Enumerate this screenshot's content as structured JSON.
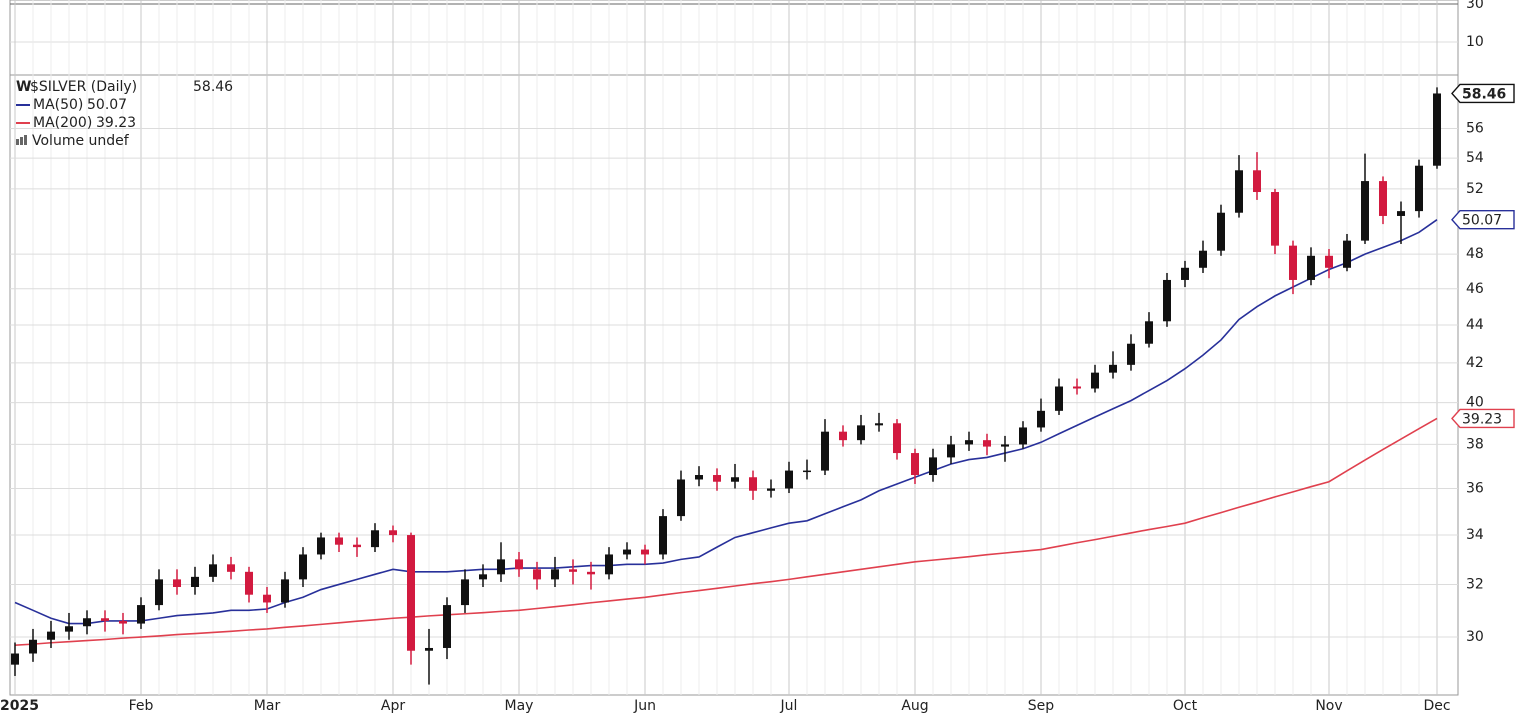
{
  "chart_data": {
    "type": "candlestick",
    "title": "$SILVER (Daily)",
    "log_scale": true,
    "grid": true,
    "up_color": "#111111",
    "down_color": "#d21a3f",
    "categories": [
      "2025",
      null,
      null,
      null,
      null,
      null,
      null,
      "Feb",
      null,
      null,
      null,
      null,
      null,
      null,
      "Mar",
      null,
      null,
      null,
      null,
      null,
      null,
      "Apr",
      null,
      null,
      null,
      null,
      null,
      null,
      "May",
      null,
      null,
      null,
      null,
      null,
      null,
      "Jun",
      null,
      null,
      null,
      null,
      null,
      null,
      null,
      "Jul",
      null,
      null,
      null,
      null,
      null,
      null,
      "Aug",
      null,
      null,
      null,
      null,
      null,
      null,
      "Sep",
      null,
      null,
      null,
      null,
      null,
      null,
      null,
      "Oct",
      null,
      null,
      null,
      null,
      null,
      null,
      null,
      "Nov",
      null,
      null,
      null,
      null,
      null,
      "Dec"
    ],
    "open": [
      29.0,
      29.4,
      29.9,
      30.2,
      30.4,
      30.7,
      30.6,
      30.5,
      31.2,
      32.2,
      31.9,
      32.3,
      32.8,
      32.5,
      31.6,
      31.3,
      32.2,
      33.2,
      33.9,
      33.6,
      33.5,
      34.2,
      34.0,
      29.5,
      29.6,
      31.2,
      32.2,
      32.4,
      33.0,
      32.6,
      32.2,
      32.6,
      32.5,
      32.4,
      33.2,
      33.4,
      33.2,
      34.8,
      36.4,
      36.6,
      36.3,
      36.5,
      35.9,
      36.0,
      36.8,
      36.8,
      38.6,
      38.2,
      38.9,
      39.0,
      37.6,
      36.6,
      37.4,
      38.0,
      38.2,
      37.9,
      38.0,
      38.8,
      39.6,
      40.8,
      40.7,
      41.5,
      41.9,
      43.0,
      44.2,
      46.5,
      47.2,
      48.2,
      50.5,
      53.2,
      51.8,
      48.5,
      46.5,
      47.9,
      47.2,
      48.8,
      52.5,
      50.3,
      50.6,
      53.5
    ],
    "high": [
      29.8,
      30.3,
      30.6,
      30.9,
      31.0,
      31.0,
      30.9,
      31.5,
      32.6,
      32.6,
      32.7,
      33.2,
      33.1,
      32.7,
      31.9,
      32.5,
      33.5,
      34.1,
      34.1,
      33.9,
      34.5,
      34.4,
      34.1,
      30.3,
      31.5,
      32.6,
      32.8,
      33.7,
      33.3,
      32.9,
      33.1,
      33.0,
      32.9,
      33.5,
      33.7,
      33.6,
      35.1,
      36.8,
      37.0,
      36.9,
      37.1,
      36.8,
      36.4,
      37.2,
      37.3,
      39.2,
      38.9,
      39.4,
      39.5,
      39.2,
      37.8,
      37.8,
      38.4,
      38.6,
      38.5,
      38.4,
      39.1,
      40.2,
      41.2,
      41.2,
      41.9,
      42.6,
      43.5,
      44.7,
      46.9,
      47.6,
      48.8,
      51.0,
      54.2,
      54.4,
      52.0,
      48.8,
      48.4,
      48.3,
      49.2,
      54.3,
      52.8,
      51.2,
      53.9,
      58.9
    ],
    "low": [
      28.6,
      29.1,
      29.6,
      29.9,
      30.1,
      30.2,
      30.1,
      30.3,
      31.0,
      31.6,
      31.6,
      32.1,
      32.2,
      31.3,
      30.9,
      31.1,
      31.9,
      33.0,
      33.3,
      33.1,
      33.3,
      33.7,
      29.0,
      28.3,
      29.2,
      30.9,
      31.9,
      32.1,
      32.3,
      31.8,
      31.9,
      32.0,
      31.8,
      32.2,
      33.0,
      32.8,
      33.0,
      34.6,
      36.1,
      35.9,
      36.0,
      35.5,
      35.6,
      35.8,
      36.4,
      36.6,
      37.9,
      38.0,
      38.6,
      37.3,
      36.2,
      36.3,
      37.1,
      37.7,
      37.5,
      37.2,
      37.8,
      38.6,
      39.4,
      40.4,
      40.5,
      41.2,
      41.6,
      42.8,
      43.9,
      46.1,
      46.9,
      47.9,
      50.2,
      51.3,
      48.0,
      45.7,
      46.2,
      46.6,
      47.0,
      48.6,
      49.8,
      48.6,
      50.2,
      53.3
    ],
    "close": [
      29.4,
      29.9,
      30.2,
      30.4,
      30.7,
      30.6,
      30.5,
      31.2,
      32.2,
      31.9,
      32.3,
      32.8,
      32.5,
      31.6,
      31.3,
      32.2,
      33.2,
      33.9,
      33.6,
      33.5,
      34.2,
      34.0,
      29.5,
      29.6,
      31.2,
      32.2,
      32.4,
      33.0,
      32.6,
      32.2,
      32.6,
      32.5,
      32.4,
      33.2,
      33.4,
      33.2,
      34.8,
      36.4,
      36.6,
      36.3,
      36.5,
      35.9,
      36.0,
      36.8,
      36.8,
      38.6,
      38.2,
      38.9,
      39.0,
      37.6,
      36.6,
      37.4,
      38.0,
      38.2,
      37.9,
      38.0,
      38.8,
      39.6,
      40.8,
      40.7,
      41.5,
      41.9,
      43.0,
      44.2,
      46.5,
      47.2,
      48.2,
      50.5,
      53.2,
      51.8,
      48.5,
      46.5,
      47.9,
      47.2,
      48.8,
      52.5,
      50.3,
      50.6,
      53.5,
      58.46
    ],
    "series": [
      {
        "name": "MA(50)",
        "color": "#28309a",
        "values": [
          31.3,
          31.0,
          30.7,
          30.5,
          30.5,
          30.6,
          30.6,
          30.6,
          30.7,
          30.8,
          30.85,
          30.9,
          31.0,
          31.0,
          31.05,
          31.3,
          31.5,
          31.8,
          32.0,
          32.2,
          32.4,
          32.6,
          32.5,
          32.5,
          32.5,
          32.55,
          32.6,
          32.6,
          32.65,
          32.65,
          32.65,
          32.7,
          32.75,
          32.75,
          32.8,
          32.8,
          32.85,
          33.0,
          33.1,
          33.5,
          33.9,
          34.1,
          34.3,
          34.5,
          34.6,
          34.9,
          35.2,
          35.5,
          35.9,
          36.2,
          36.5,
          36.8,
          37.1,
          37.3,
          37.4,
          37.6,
          37.8,
          38.1,
          38.5,
          38.9,
          39.3,
          39.7,
          40.1,
          40.6,
          41.1,
          41.7,
          42.4,
          43.2,
          44.3,
          45.0,
          45.6,
          46.1,
          46.6,
          47.1,
          47.5,
          48.0,
          48.4,
          48.8,
          49.3,
          50.07
        ]
      },
      {
        "name": "MA(200)",
        "color": "#e0404e",
        "values": [
          29.7,
          29.74,
          29.79,
          29.83,
          29.87,
          29.91,
          29.96,
          30.0,
          30.04,
          30.09,
          30.13,
          30.17,
          30.21,
          30.26,
          30.3,
          30.36,
          30.41,
          30.47,
          30.53,
          30.59,
          30.64,
          30.7,
          30.74,
          30.79,
          30.83,
          30.87,
          30.91,
          30.96,
          31.0,
          31.07,
          31.14,
          31.21,
          31.29,
          31.36,
          31.43,
          31.5,
          31.59,
          31.68,
          31.76,
          31.85,
          31.94,
          32.03,
          32.11,
          32.2,
          32.3,
          32.4,
          32.5,
          32.6,
          32.7,
          32.8,
          32.9,
          32.97,
          33.04,
          33.11,
          33.19,
          33.26,
          33.33,
          33.4,
          33.54,
          33.68,
          33.81,
          33.95,
          34.09,
          34.23,
          34.36,
          34.5,
          34.73,
          34.95,
          35.18,
          35.4,
          35.63,
          35.85,
          36.08,
          36.3,
          36.79,
          37.28,
          37.77,
          38.25,
          38.74,
          39.23
        ]
      }
    ],
    "volume_legend": "Volume undef",
    "ylim": [
      27.94,
      59.8
    ],
    "yticks": [
      30,
      32,
      34,
      36,
      38,
      40,
      42,
      44,
      46,
      48,
      52,
      54,
      56
    ],
    "upper_panel": {
      "ylim": [
        -7.4,
        32.1
      ],
      "yticks": [
        10,
        30
      ]
    }
  }
}
